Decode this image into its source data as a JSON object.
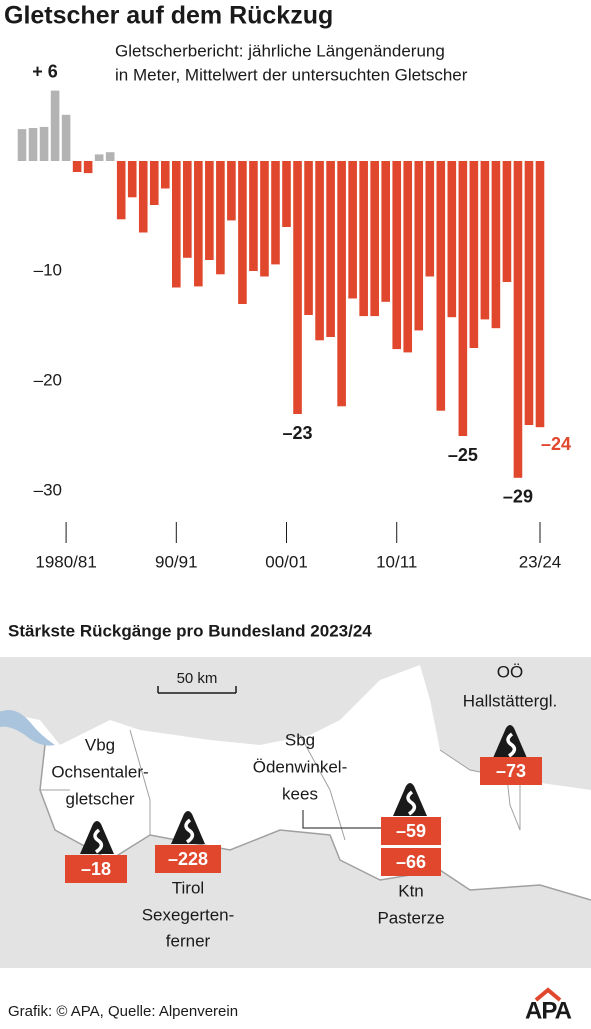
{
  "chart_data": {
    "type": "bar",
    "title": "Gletscher auf dem Rückzug",
    "subtitle": [
      "Gletscherbericht: jährliche Längenänderung",
      "in Meter, Mittelwert der untersuchten Gletscher"
    ],
    "categories": [
      null,
      null,
      null,
      null,
      "1980/81",
      null,
      null,
      null,
      null,
      null,
      null,
      null,
      null,
      null,
      "90/91",
      null,
      null,
      null,
      null,
      null,
      null,
      null,
      null,
      null,
      "00/01",
      null,
      null,
      null,
      null,
      null,
      null,
      null,
      null,
      null,
      "10/11",
      null,
      null,
      null,
      null,
      null,
      null,
      null,
      null,
      null,
      null,
      null,
      null,
      "23/24"
    ],
    "values": [
      2.9,
      3.0,
      3.1,
      6.4,
      4.2,
      -1.0,
      -1.1,
      0.6,
      0.8,
      -5.3,
      -3.3,
      -6.5,
      -4.0,
      -2.5,
      -11.5,
      -8.8,
      -11.4,
      -9.0,
      -10.3,
      -5.4,
      -13.0,
      -10.0,
      -10.5,
      -9.4,
      -6.0,
      -23.0,
      -14.0,
      -16.3,
      -16.0,
      -22.3,
      -12.5,
      -14.1,
      -14.1,
      -12.8,
      -17.1,
      -17.4,
      -15.4,
      -10.5,
      -22.7,
      -14.2,
      -25.0,
      -17.0,
      -14.4,
      -15.2,
      -11.0,
      -28.8,
      -24.0,
      -24.2
    ],
    "value_labels": [
      null,
      null,
      null,
      "+ 6",
      null,
      null,
      null,
      null,
      null,
      null,
      null,
      null,
      null,
      null,
      null,
      null,
      null,
      null,
      null,
      null,
      null,
      null,
      null,
      null,
      null,
      "–23",
      null,
      null,
      null,
      null,
      null,
      null,
      null,
      null,
      null,
      null,
      null,
      null,
      null,
      null,
      "–25",
      null,
      null,
      null,
      null,
      "–29",
      null,
      "–24"
    ],
    "color_positive": "#b3b3b3",
    "color_negative": "#e0472c",
    "highlight_color": "#e0472c",
    "ylim": [
      -32,
      7
    ],
    "yticks": [
      {
        "value": -10,
        "label": "–10"
      },
      {
        "value": -20,
        "label": "–20"
      },
      {
        "value": -30,
        "label": "–30"
      }
    ]
  },
  "map": {
    "title": "Stärkste Rückgänge pro Bundesland  2023/24",
    "scale": "50 km",
    "markers": [
      {
        "lines": [
          "Vbg",
          "Ochsentaler-",
          "gletscher"
        ],
        "value": "–18"
      },
      {
        "lines": [
          "Tirol",
          "Sexegerten-",
          "ferner"
        ],
        "value": "–228"
      },
      {
        "lines": [
          "Sbg",
          "Ödenwinkel-",
          "kees"
        ],
        "value": "–59"
      },
      {
        "lines": [
          "Ktn",
          "Pasterze"
        ],
        "value": "–66"
      },
      {
        "lines": [
          "OÖ",
          "Hallstättergl."
        ],
        "value": "–73"
      }
    ]
  },
  "footer": {
    "source": "Grafik: © APA, Quelle: Alpenverein",
    "logo": "APA"
  }
}
